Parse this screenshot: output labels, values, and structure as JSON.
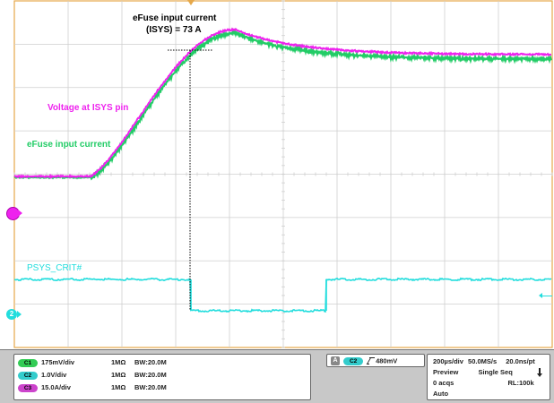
{
  "annotations": {
    "current_label_line1": "eFuse input current",
    "current_label_line2": "(ISYS) = 73 A",
    "voltage_label": "Voltage at ISYS pin",
    "efuse_label": "eFuse input current",
    "psys_label": "PSYS_CRIT#"
  },
  "markers": {
    "ch1_marker": "",
    "ch2_marker": "2"
  },
  "channels": [
    {
      "badge": "C1",
      "scale": "175mV/div",
      "impedance": "1MΩ",
      "bw": "BW:20.0M",
      "color": "#33cc55"
    },
    {
      "badge": "C2",
      "scale": "1.0V/div",
      "impedance": "1MΩ",
      "bw": "BW:20.0M",
      "color": "#33cccc"
    },
    {
      "badge": "C3",
      "scale": "15.0A/div",
      "impedance": "1MΩ",
      "bw": "BW:20.0M",
      "color": "#cc44cc"
    }
  ],
  "trigger": {
    "mode_badge": "A",
    "channel_badge": "C2",
    "level": "480mV"
  },
  "acquisition": {
    "timebase": "200µs/div",
    "sample_rate": "50.0MS/s",
    "resolution": "20.0ns/pt",
    "state": "Preview",
    "sequence": "Single Seq",
    "acqs": "0 acqs",
    "record_length": "RL:100k",
    "trigger_mode": "Auto",
    "state_icon": "down-arrow-icon"
  },
  "colors": {
    "magenta": "#ee22ee",
    "green": "#22cc66",
    "cyan": "#22dddd",
    "grid_border": "#e6a84a",
    "grid_lines": "#cfcfcf"
  }
}
